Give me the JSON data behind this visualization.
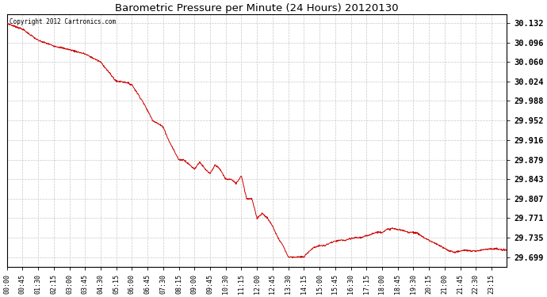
{
  "title": "Barometric Pressure per Minute (24 Hours) 20120130",
  "copyright_text": "Copyright 2012 Cartronics.com",
  "line_color": "#cc0000",
  "bg_color": "#ffffff",
  "plot_bg_color": "#ffffff",
  "grid_color": "#c8c8c8",
  "grid_style": "--",
  "yticks": [
    29.699,
    29.735,
    29.771,
    29.807,
    29.843,
    29.879,
    29.916,
    29.952,
    29.988,
    30.024,
    30.06,
    30.096,
    30.132
  ],
  "ylim": [
    29.681,
    30.148
  ],
  "xtick_labels": [
    "00:00",
    "00:45",
    "01:30",
    "02:15",
    "03:00",
    "03:45",
    "04:30",
    "05:15",
    "06:00",
    "06:45",
    "07:30",
    "08:15",
    "09:00",
    "09:45",
    "10:30",
    "11:15",
    "12:00",
    "12:45",
    "13:30",
    "14:15",
    "15:00",
    "15:45",
    "16:30",
    "17:15",
    "18:00",
    "18:45",
    "19:30",
    "20:15",
    "21:00",
    "21:45",
    "22:30",
    "23:15"
  ],
  "total_minutes": 1440,
  "keypoints": [
    [
      0,
      30.132
    ],
    [
      15,
      30.128
    ],
    [
      45,
      30.121
    ],
    [
      90,
      30.1
    ],
    [
      135,
      30.09
    ],
    [
      180,
      30.083
    ],
    [
      225,
      30.075
    ],
    [
      270,
      30.06
    ],
    [
      315,
      30.024
    ],
    [
      330,
      30.024
    ],
    [
      345,
      30.022
    ],
    [
      360,
      30.018
    ],
    [
      390,
      29.988
    ],
    [
      420,
      29.952
    ],
    [
      450,
      29.94
    ],
    [
      465,
      29.916
    ],
    [
      495,
      29.879
    ],
    [
      510,
      29.879
    ],
    [
      525,
      29.87
    ],
    [
      540,
      29.862
    ],
    [
      555,
      29.875
    ],
    [
      570,
      29.862
    ],
    [
      585,
      29.853
    ],
    [
      600,
      29.87
    ],
    [
      615,
      29.86
    ],
    [
      630,
      29.843
    ],
    [
      645,
      29.843
    ],
    [
      660,
      29.835
    ],
    [
      675,
      29.85
    ],
    [
      690,
      29.807
    ],
    [
      705,
      29.807
    ],
    [
      720,
      29.771
    ],
    [
      735,
      29.78
    ],
    [
      750,
      29.771
    ],
    [
      765,
      29.756
    ],
    [
      780,
      29.735
    ],
    [
      795,
      29.72
    ],
    [
      810,
      29.699
    ],
    [
      825,
      29.699
    ],
    [
      855,
      29.699
    ],
    [
      870,
      29.71
    ],
    [
      885,
      29.717
    ],
    [
      900,
      29.72
    ],
    [
      915,
      29.72
    ],
    [
      930,
      29.725
    ],
    [
      945,
      29.728
    ],
    [
      960,
      29.73
    ],
    [
      975,
      29.73
    ],
    [
      990,
      29.733
    ],
    [
      1005,
      29.735
    ],
    [
      1020,
      29.735
    ],
    [
      1035,
      29.738
    ],
    [
      1050,
      29.742
    ],
    [
      1065,
      29.745
    ],
    [
      1080,
      29.745
    ],
    [
      1095,
      29.75
    ],
    [
      1110,
      29.752
    ],
    [
      1125,
      29.75
    ],
    [
      1140,
      29.748
    ],
    [
      1155,
      29.745
    ],
    [
      1170,
      29.745
    ],
    [
      1185,
      29.742
    ],
    [
      1200,
      29.735
    ],
    [
      1215,
      29.73
    ],
    [
      1230,
      29.725
    ],
    [
      1245,
      29.72
    ],
    [
      1260,
      29.715
    ],
    [
      1275,
      29.71
    ],
    [
      1290,
      29.708
    ],
    [
      1305,
      29.71
    ],
    [
      1320,
      29.712
    ],
    [
      1335,
      29.71
    ],
    [
      1350,
      29.71
    ],
    [
      1365,
      29.712
    ],
    [
      1380,
      29.714
    ],
    [
      1395,
      29.714
    ],
    [
      1410,
      29.714
    ],
    [
      1425,
      29.712
    ],
    [
      1439,
      29.712
    ]
  ]
}
